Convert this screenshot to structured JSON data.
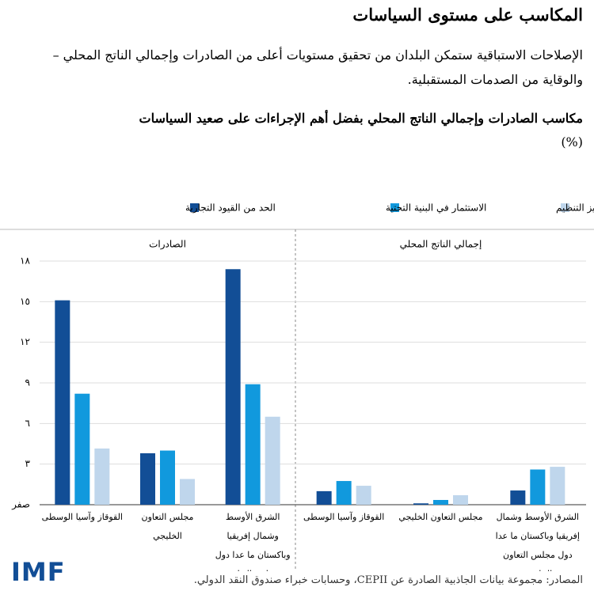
{
  "title": "المكاسب على مستوى السياسات",
  "subtitle": "الإصلاحات الاستباقية ستمكن البلدان من تحقيق مستويات أعلى من الصادرات وإجمالي الناتج المحلي – والوقاية من الصدمات المستقبلية.",
  "chart_title": "مكاسب الصادرات وإجمالي الناتج المحلي بفضل أهم الإجراءات على صعيد السياسات",
  "unit": "(%)",
  "source": "المصادر: مجموعة بيانات الجاذبية الصادرة عن CEPII، وحسابات خبراء صندوق النقد الدولي.",
  "logo": "IMF",
  "chart_data": [
    {
      "type": "bar",
      "title": "الصادرات",
      "categories": [
        "القوقاز وآسيا الوسطى",
        "مجلس التعاون الخليجي",
        "الشرق الأوسط وشمال إفريقيا وباكستان ما عدا دول مجلس التعاون الخليجي"
      ],
      "series": [
        {
          "name": "الحد من القيود التجارية",
          "color": "#124e96",
          "values": [
            15.1,
            3.8,
            17.4
          ]
        },
        {
          "name": "الاستثمار في البنية التحتية",
          "color": "#1199dd",
          "values": [
            8.2,
            4.0,
            8.9
          ]
        },
        {
          "name": "تعزيز التنظيم",
          "color": "#bfd6ec",
          "values": [
            4.15,
            1.9,
            6.5
          ]
        }
      ],
      "ylim": [
        0,
        18
      ],
      "yticks": [
        {
          "value": 0,
          "label": "صفر"
        },
        {
          "value": 3,
          "label": "٣"
        },
        {
          "value": 6,
          "label": "٦"
        },
        {
          "value": 9,
          "label": "٩"
        },
        {
          "value": 12,
          "label": "١٢"
        },
        {
          "value": 15,
          "label": "١٥"
        },
        {
          "value": 18,
          "label": "١٨"
        }
      ],
      "grid": true
    },
    {
      "type": "bar",
      "title": "إجمالي الناتج المحلي",
      "categories": [
        "القوقاز وآسيا الوسطى",
        "مجلس التعاون الخليجي",
        "الشرق الأوسط وشمال إفريقيا وباكستان ما عدا دول مجلس التعاون الخليجي"
      ],
      "series": [
        {
          "name": "الحد من القيود التجارية",
          "color": "#124e96",
          "values": [
            1.0,
            0.1,
            1.05
          ]
        },
        {
          "name": "الاستثمار في البنية التحتية",
          "color": "#1199dd",
          "values": [
            1.75,
            0.35,
            2.6
          ]
        },
        {
          "name": "تعزيز التنظيم",
          "color": "#bfd6ec",
          "values": [
            1.4,
            0.7,
            2.8
          ]
        }
      ],
      "ylim": [
        0,
        18
      ],
      "yticks": [
        0,
        3,
        6,
        9,
        12,
        15,
        18
      ],
      "grid": true
    }
  ]
}
